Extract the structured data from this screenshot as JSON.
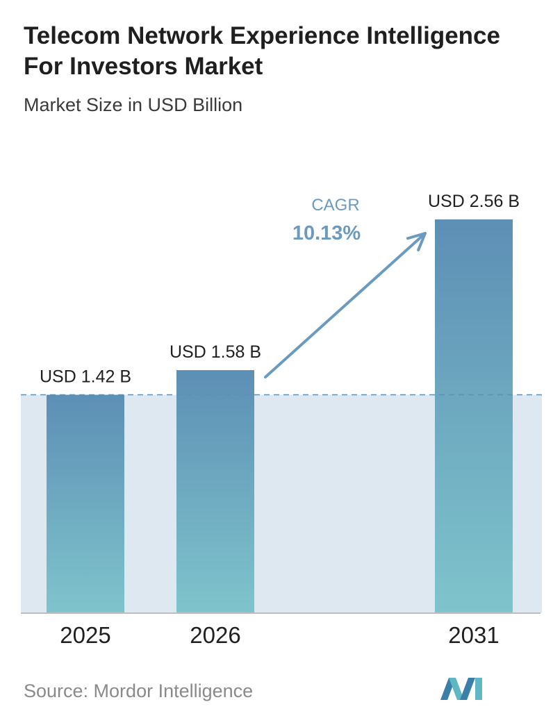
{
  "title": "Telecom Network Experience Intelligence For Investors Market",
  "subtitle": "Market Size in USD Billion",
  "source": "Source: Mordor Intelligence",
  "colors": {
    "bar_top": "#5d8fb5",
    "bar_bottom": "#7fc4cc",
    "band": "#dee8f0",
    "arrow": "#6a9ac0",
    "cagr_text": "#6a9ac0",
    "axis": "#bdbdbd",
    "dashed": "#5d8fb5"
  },
  "chart_data": {
    "type": "bar",
    "categories": [
      "2025",
      "2026",
      "2031"
    ],
    "values": [
      1.42,
      1.58,
      2.56
    ],
    "value_labels": [
      "USD 1.42 B",
      "USD 1.58 B",
      "USD 2.56 B"
    ],
    "ylim": [
      0,
      2.56
    ],
    "grid": false,
    "reference_line": 1.42,
    "annotation": {
      "label": "CAGR",
      "value": "10.13%"
    }
  }
}
